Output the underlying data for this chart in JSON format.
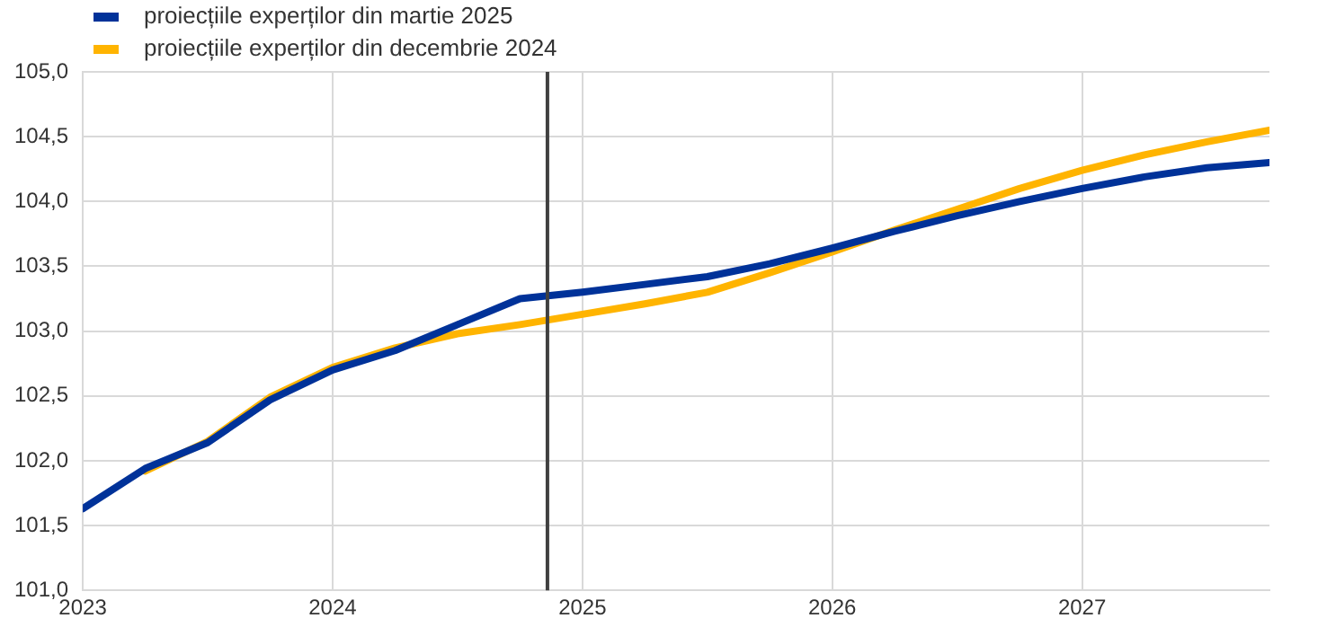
{
  "chart_data": {
    "type": "line",
    "x": [
      2023,
      2023.25,
      2023.5,
      2023.75,
      2024,
      2024.25,
      2024.5,
      2024.75,
      2025,
      2025.25,
      2025.5,
      2025.75,
      2026,
      2026.25,
      2026.5,
      2026.75,
      2027,
      2027.25,
      2027.5,
      2027.75
    ],
    "series": [
      {
        "name": "proiecțiile experților din martie 2025",
        "color": "#003299",
        "values": [
          101.63,
          101.94,
          102.14,
          102.47,
          102.7,
          102.85,
          103.05,
          103.25,
          103.3,
          103.36,
          103.42,
          103.52,
          103.64,
          103.77,
          103.89,
          104.0,
          104.1,
          104.19,
          104.26,
          104.3
        ]
      },
      {
        "name": "proiecțiile experților din decembrie 2024",
        "color": "#ffb400",
        "values": [
          null,
          101.92,
          102.15,
          102.49,
          102.72,
          102.87,
          102.98,
          103.05,
          103.13,
          103.21,
          103.3,
          103.45,
          103.61,
          103.78,
          103.94,
          104.1,
          104.24,
          104.36,
          104.46,
          104.55
        ]
      }
    ],
    "xlim": [
      2023,
      2027.75
    ],
    "xticks": [
      2023,
      2024,
      2025,
      2026,
      2027
    ],
    "ylim": [
      101,
      105
    ],
    "yticks": [
      {
        "value": 101,
        "label": "101,0"
      },
      {
        "value": 101.5,
        "label": "101,5"
      },
      {
        "value": 102,
        "label": "102,0"
      },
      {
        "value": 102.5,
        "label": "102,5"
      },
      {
        "value": 103,
        "label": "103,0"
      },
      {
        "value": 103.5,
        "label": "103,5"
      },
      {
        "value": 104,
        "label": "104,0"
      },
      {
        "value": 104.5,
        "label": "104,5"
      },
      {
        "value": 105,
        "label": "105,0"
      }
    ],
    "ref_lines": [
      {
        "axis": "x",
        "value": 2024.86,
        "color": "#404040"
      }
    ],
    "grid": true,
    "legend": "top left",
    "marker": "none",
    "line_style": "solid"
  }
}
